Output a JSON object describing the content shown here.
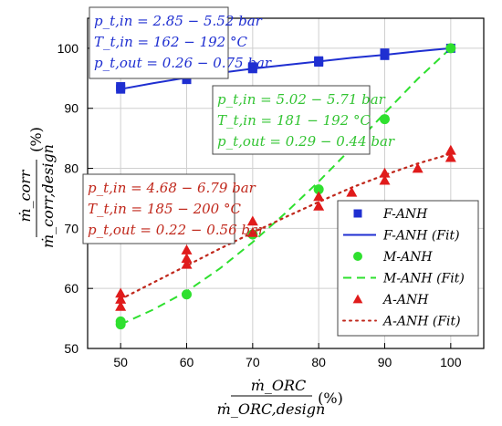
{
  "chart_data": {
    "type": "scatter",
    "xlabel": {
      "numerator": "ṁ_ORC",
      "denominator": "ṁ_ORC,design",
      "unit": "(%)"
    },
    "ylabel": {
      "numerator": "ṁ_corr",
      "denominator": "ṁ_corr,design",
      "unit": "(%)"
    },
    "xlim": [
      45,
      105
    ],
    "ylim": [
      50,
      105
    ],
    "xticks": [
      50,
      60,
      70,
      80,
      90,
      100
    ],
    "yticks": [
      50,
      60,
      70,
      80,
      90,
      100
    ],
    "xtick_labels": [
      "50",
      "60",
      "70",
      "80",
      "90",
      "100"
    ],
    "ytick_labels": [
      "50",
      "60",
      "70",
      "80",
      "90",
      "100"
    ],
    "grid": true,
    "legend_position": "bottom-right",
    "series": [
      {
        "name": "F-ANH",
        "kind": "points",
        "marker": "square",
        "color": "#1f2fd1",
        "points": [
          [
            50,
            93.2
          ],
          [
            50,
            93.6
          ],
          [
            60,
            94.8
          ],
          [
            60,
            95.4
          ],
          [
            70,
            96.6
          ],
          [
            70,
            96.9
          ],
          [
            80,
            97.7
          ],
          [
            80,
            97.9
          ],
          [
            90,
            98.8
          ],
          [
            90,
            99.2
          ],
          [
            100,
            100.0
          ]
        ]
      },
      {
        "name": "F-ANH (Fit)",
        "kind": "fit",
        "style": "solid",
        "color": "#1f2fd1",
        "points": [
          [
            50,
            93.2
          ],
          [
            55,
            94.2
          ],
          [
            60,
            95.1
          ],
          [
            65,
            95.9
          ],
          [
            70,
            96.6
          ],
          [
            75,
            97.2
          ],
          [
            80,
            97.8
          ],
          [
            85,
            98.4
          ],
          [
            90,
            98.9
          ],
          [
            95,
            99.5
          ],
          [
            100,
            100.0
          ]
        ]
      },
      {
        "name": "M-ANH",
        "kind": "points",
        "marker": "circle",
        "color": "#2fe02f",
        "points": [
          [
            50,
            54.0
          ],
          [
            50,
            54.5
          ],
          [
            60,
            59.0
          ],
          [
            70,
            69.0
          ],
          [
            80,
            76.5
          ],
          [
            90,
            88.2
          ],
          [
            100,
            100.0
          ]
        ]
      },
      {
        "name": "M-ANH (Fit)",
        "kind": "fit",
        "style": "dashed",
        "color": "#2fe02f",
        "points": [
          [
            50,
            54.0
          ],
          [
            55,
            56.5
          ],
          [
            60,
            59.5
          ],
          [
            65,
            63.3
          ],
          [
            70,
            67.7
          ],
          [
            75,
            72.6
          ],
          [
            80,
            77.8
          ],
          [
            85,
            83.4
          ],
          [
            90,
            89.2
          ],
          [
            95,
            94.9
          ],
          [
            100,
            100.0
          ]
        ]
      },
      {
        "name": "A-ANH",
        "kind": "points",
        "marker": "triangle",
        "color": "#e01b1b",
        "points": [
          [
            50,
            57.0
          ],
          [
            50,
            58.2
          ],
          [
            50,
            59.2
          ],
          [
            60,
            64.0
          ],
          [
            60,
            65.0
          ],
          [
            60,
            66.4
          ],
          [
            70,
            69.3
          ],
          [
            70,
            71.2
          ],
          [
            80,
            73.7
          ],
          [
            80,
            75.3
          ],
          [
            85,
            76.0
          ],
          [
            90,
            78.0
          ],
          [
            90,
            79.2
          ],
          [
            95,
            80.0
          ],
          [
            100,
            81.8
          ],
          [
            100,
            83.0
          ]
        ]
      },
      {
        "name": "A-ANH (Fit)",
        "kind": "fit",
        "style": "dotted",
        "color": "#c0271b",
        "points": [
          [
            50,
            58.2
          ],
          [
            55,
            61.0
          ],
          [
            60,
            63.8
          ],
          [
            65,
            66.6
          ],
          [
            70,
            69.3
          ],
          [
            75,
            71.9
          ],
          [
            80,
            74.4
          ],
          [
            85,
            76.8
          ],
          [
            90,
            78.9
          ],
          [
            95,
            80.8
          ],
          [
            100,
            82.4
          ]
        ]
      }
    ],
    "annotations": [
      {
        "id": "blue",
        "color": "#1f2fd1",
        "lines": [
          "p_t,in = 2.85 − 5.52 bar",
          "T_t,in = 162 − 192 °C",
          "p_t,out = 0.26 − 0.75 bar"
        ]
      },
      {
        "id": "green",
        "color": "#33c433",
        "lines": [
          "p_t,in = 5.02 − 5.71 bar",
          "T_t,in = 181 − 192 °C",
          "p_t,out = 0.29 − 0.44 bar"
        ]
      },
      {
        "id": "red",
        "color": "#c0271b",
        "lines": [
          "p_t,in = 4.68 − 6.79 bar",
          "T_t,in = 185 − 200 °C",
          "p_t,out = 0.22 − 0.56 bar"
        ]
      }
    ]
  }
}
